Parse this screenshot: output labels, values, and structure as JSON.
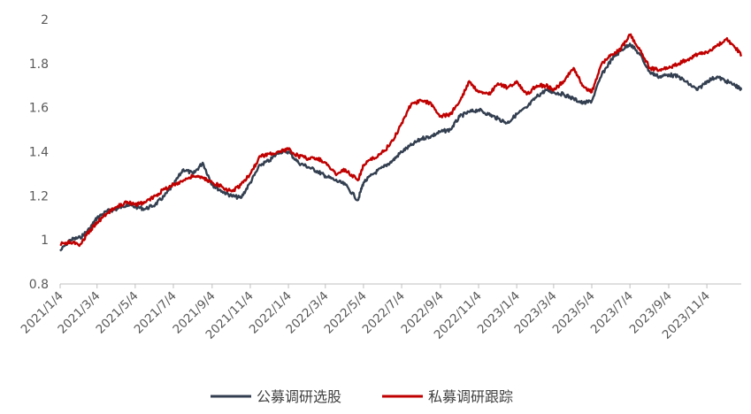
{
  "chart_data": {
    "type": "line",
    "xlabel": "",
    "ylabel": "",
    "ylim": [
      0.8,
      2.0
    ],
    "yticks": [
      "0.8",
      "1",
      "1.2",
      "1.4",
      "1.6",
      "1.8",
      "2"
    ],
    "xticks": [
      "2021/1/4",
      "2021/3/4",
      "2021/5/4",
      "2021/7/4",
      "2021/9/4",
      "2021/11/4",
      "2022/1/4",
      "2022/3/4",
      "2022/5/4",
      "2022/7/4",
      "2022/9/4",
      "2022/11/4",
      "2023/1/4",
      "2023/3/4",
      "2023/5/4",
      "2023/7/4",
      "2023/9/4",
      "2023/11/4"
    ],
    "grid": false,
    "legend_position": "bottom",
    "series": [
      {
        "name": "公募调研选股",
        "color": "#333f50",
        "points": [
          [
            "2021-01-04",
            0.95
          ],
          [
            "2021-01-20",
            1.0
          ],
          [
            "2021-02-05",
            1.01
          ],
          [
            "2021-02-20",
            1.05
          ],
          [
            "2021-03-04",
            1.1
          ],
          [
            "2021-03-20",
            1.13
          ],
          [
            "2021-04-05",
            1.14
          ],
          [
            "2021-04-20",
            1.16
          ],
          [
            "2021-05-04",
            1.15
          ],
          [
            "2021-05-20",
            1.14
          ],
          [
            "2021-06-05",
            1.16
          ],
          [
            "2021-06-20",
            1.2
          ],
          [
            "2021-07-04",
            1.25
          ],
          [
            "2021-07-20",
            1.32
          ],
          [
            "2021-08-05",
            1.3
          ],
          [
            "2021-08-20",
            1.35
          ],
          [
            "2021-09-04",
            1.25
          ],
          [
            "2021-09-20",
            1.22
          ],
          [
            "2021-10-05",
            1.2
          ],
          [
            "2021-10-20",
            1.19
          ],
          [
            "2021-11-04",
            1.26
          ],
          [
            "2021-11-20",
            1.34
          ],
          [
            "2021-12-05",
            1.36
          ],
          [
            "2021-12-20",
            1.4
          ],
          [
            "2022-01-04",
            1.4
          ],
          [
            "2022-01-20",
            1.35
          ],
          [
            "2022-02-05",
            1.33
          ],
          [
            "2022-02-20",
            1.31
          ],
          [
            "2022-03-04",
            1.29
          ],
          [
            "2022-03-20",
            1.27
          ],
          [
            "2022-04-05",
            1.25
          ],
          [
            "2022-04-25",
            1.18
          ],
          [
            "2022-05-04",
            1.26
          ],
          [
            "2022-05-20",
            1.3
          ],
          [
            "2022-06-05",
            1.33
          ],
          [
            "2022-06-20",
            1.36
          ],
          [
            "2022-07-04",
            1.4
          ],
          [
            "2022-07-20",
            1.43
          ],
          [
            "2022-08-05",
            1.46
          ],
          [
            "2022-08-20",
            1.47
          ],
          [
            "2022-09-04",
            1.49
          ],
          [
            "2022-09-20",
            1.5
          ],
          [
            "2022-10-05",
            1.56
          ],
          [
            "2022-10-20",
            1.58
          ],
          [
            "2022-11-04",
            1.59
          ],
          [
            "2022-11-20",
            1.57
          ],
          [
            "2022-12-05",
            1.55
          ],
          [
            "2022-12-20",
            1.53
          ],
          [
            "2023-01-04",
            1.57
          ],
          [
            "2023-01-20",
            1.6
          ],
          [
            "2023-02-05",
            1.65
          ],
          [
            "2023-02-20",
            1.68
          ],
          [
            "2023-03-04",
            1.67
          ],
          [
            "2023-03-20",
            1.66
          ],
          [
            "2023-04-05",
            1.64
          ],
          [
            "2023-04-20",
            1.62
          ],
          [
            "2023-05-04",
            1.63
          ],
          [
            "2023-05-20",
            1.75
          ],
          [
            "2023-06-05",
            1.82
          ],
          [
            "2023-06-20",
            1.86
          ],
          [
            "2023-07-04",
            1.89
          ],
          [
            "2023-07-20",
            1.84
          ],
          [
            "2023-08-05",
            1.76
          ],
          [
            "2023-08-20",
            1.74
          ],
          [
            "2023-09-04",
            1.75
          ],
          [
            "2023-09-20",
            1.74
          ],
          [
            "2023-10-05",
            1.71
          ],
          [
            "2023-10-20",
            1.68
          ],
          [
            "2023-11-04",
            1.72
          ],
          [
            "2023-11-20",
            1.74
          ],
          [
            "2023-12-05",
            1.72
          ],
          [
            "2023-12-20",
            1.7
          ],
          [
            "2023-12-29",
            1.68
          ]
        ]
      },
      {
        "name": "私募调研跟踪",
        "color": "#c00000",
        "points": [
          [
            "2021-01-04",
            0.98
          ],
          [
            "2021-01-20",
            0.99
          ],
          [
            "2021-02-05",
            0.98
          ],
          [
            "2021-02-20",
            1.04
          ],
          [
            "2021-03-04",
            1.08
          ],
          [
            "2021-03-20",
            1.12
          ],
          [
            "2021-04-05",
            1.15
          ],
          [
            "2021-04-20",
            1.17
          ],
          [
            "2021-05-04",
            1.16
          ],
          [
            "2021-05-20",
            1.17
          ],
          [
            "2021-06-05",
            1.2
          ],
          [
            "2021-06-20",
            1.23
          ],
          [
            "2021-07-04",
            1.25
          ],
          [
            "2021-07-20",
            1.27
          ],
          [
            "2021-08-05",
            1.29
          ],
          [
            "2021-08-20",
            1.28
          ],
          [
            "2021-09-04",
            1.26
          ],
          [
            "2021-09-20",
            1.24
          ],
          [
            "2021-10-05",
            1.22
          ],
          [
            "2021-10-20",
            1.25
          ],
          [
            "2021-11-04",
            1.3
          ],
          [
            "2021-11-20",
            1.38
          ],
          [
            "2021-12-05",
            1.39
          ],
          [
            "2021-12-20",
            1.4
          ],
          [
            "2022-01-04",
            1.41
          ],
          [
            "2022-01-20",
            1.38
          ],
          [
            "2022-02-05",
            1.37
          ],
          [
            "2022-02-20",
            1.37
          ],
          [
            "2022-03-04",
            1.35
          ],
          [
            "2022-03-20",
            1.3
          ],
          [
            "2022-04-05",
            1.32
          ],
          [
            "2022-04-25",
            1.27
          ],
          [
            "2022-05-04",
            1.34
          ],
          [
            "2022-05-20",
            1.37
          ],
          [
            "2022-06-05",
            1.4
          ],
          [
            "2022-06-20",
            1.45
          ],
          [
            "2022-07-04",
            1.53
          ],
          [
            "2022-07-20",
            1.62
          ],
          [
            "2022-08-05",
            1.63
          ],
          [
            "2022-08-20",
            1.62
          ],
          [
            "2022-09-04",
            1.56
          ],
          [
            "2022-09-20",
            1.57
          ],
          [
            "2022-10-05",
            1.63
          ],
          [
            "2022-10-20",
            1.72
          ],
          [
            "2022-11-04",
            1.67
          ],
          [
            "2022-11-20",
            1.66
          ],
          [
            "2022-12-05",
            1.71
          ],
          [
            "2022-12-20",
            1.69
          ],
          [
            "2023-01-04",
            1.72
          ],
          [
            "2023-01-20",
            1.66
          ],
          [
            "2023-02-05",
            1.7
          ],
          [
            "2023-02-20",
            1.7
          ],
          [
            "2023-03-04",
            1.68
          ],
          [
            "2023-03-20",
            1.72
          ],
          [
            "2023-04-05",
            1.78
          ],
          [
            "2023-04-20",
            1.7
          ],
          [
            "2023-05-04",
            1.67
          ],
          [
            "2023-05-20",
            1.8
          ],
          [
            "2023-06-05",
            1.84
          ],
          [
            "2023-06-20",
            1.87
          ],
          [
            "2023-07-04",
            1.93
          ],
          [
            "2023-07-20",
            1.86
          ],
          [
            "2023-08-05",
            1.78
          ],
          [
            "2023-08-20",
            1.77
          ],
          [
            "2023-09-04",
            1.78
          ],
          [
            "2023-09-20",
            1.8
          ],
          [
            "2023-10-05",
            1.82
          ],
          [
            "2023-10-20",
            1.84
          ],
          [
            "2023-11-04",
            1.85
          ],
          [
            "2023-11-20",
            1.88
          ],
          [
            "2023-12-05",
            1.91
          ],
          [
            "2023-12-20",
            1.87
          ],
          [
            "2023-12-29",
            1.84
          ]
        ]
      }
    ]
  }
}
